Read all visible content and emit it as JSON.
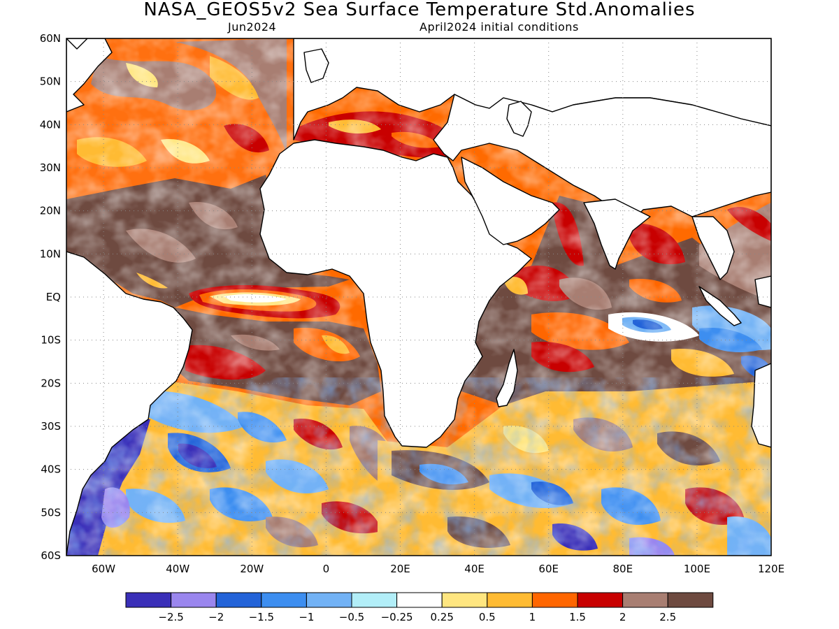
{
  "title": "NASA_GEOS5v2 Sea Surface Temperature Std.Anomalies",
  "subtitle_left": "Jun2024",
  "subtitle_right": "April2024 initial conditions",
  "map": {
    "lon_range": [
      -70,
      120
    ],
    "lat_range": [
      -60,
      60
    ],
    "lat_labels": [
      "60N",
      "50N",
      "40N",
      "30N",
      "20N",
      "10N",
      "EQ",
      "10S",
      "20S",
      "30S",
      "40S",
      "50S",
      "60S"
    ],
    "lon_labels": [
      "60W",
      "40W",
      "20W",
      "0",
      "20E",
      "40E",
      "60E",
      "80E",
      "100E",
      "120E"
    ],
    "land_color": "#ffffff",
    "coastline_color": "#000000"
  },
  "colorbar": {
    "colors": [
      "#3a2fb8",
      "#9a86ee",
      "#2363d8",
      "#3d8ef0",
      "#72b2f5",
      "#b2eef8",
      "#ffffff",
      "#ffe680",
      "#ffbb33",
      "#ff6600",
      "#c80000",
      "#a87e72",
      "#6e4a40"
    ],
    "labels": [
      "−2.5",
      "−2",
      "−1.5",
      "−1",
      "−0.5",
      "−0.25",
      "0.25",
      "0.5",
      "1",
      "1.5",
      "2",
      "2.5"
    ]
  }
}
